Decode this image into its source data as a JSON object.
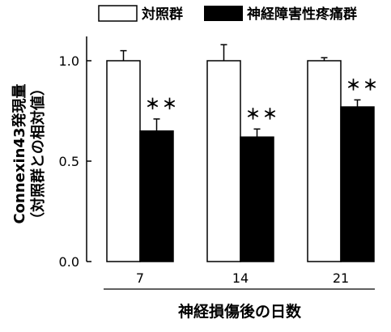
{
  "chart_data": {
    "type": "bar",
    "xlabel": "神経損傷後の日数",
    "ylabel": "Connexin43発現量",
    "ylabel_sub": "（対照群との相対値）",
    "categories": [
      "7",
      "14",
      "21"
    ],
    "ylim": [
      0,
      1.0
    ],
    "yticks": [
      "0.0",
      "0.5",
      "1.0"
    ],
    "legend_position": "top",
    "series": [
      {
        "name": "対照群",
        "values": [
          1.0,
          1.0,
          1.0
        ],
        "errors": [
          0.05,
          0.08,
          0.015
        ],
        "color": "#ffffff"
      },
      {
        "name": "神経障害性疼痛群",
        "values": [
          0.65,
          0.62,
          0.77
        ],
        "errors": [
          0.06,
          0.04,
          0.035
        ],
        "color": "#000000",
        "annotations": [
          "＊＊",
          "＊＊",
          "＊＊"
        ]
      }
    ]
  }
}
